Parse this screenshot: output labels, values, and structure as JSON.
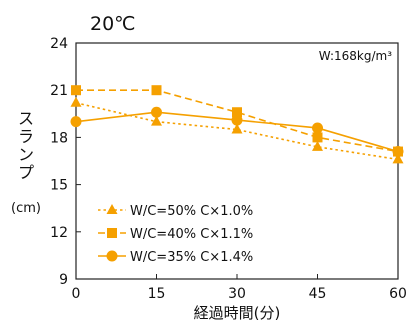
{
  "chart_data": {
    "type": "line",
    "title": "20℃",
    "annotation": "W:168kg/m³",
    "xlabel": "経過時間(分)",
    "ylabel": "スランプ",
    "ylabel_unit": "(cm)",
    "x": [
      0,
      15,
      30,
      45,
      60
    ],
    "x_ticks": [
      "0",
      "15",
      "30",
      "45",
      "60"
    ],
    "y_ticks": [
      "9",
      "12",
      "15",
      "18",
      "21",
      "24"
    ],
    "xlim": [
      0,
      60
    ],
    "ylim": [
      9,
      24
    ],
    "grid": false,
    "legend_position": "bottom-left",
    "color": "#f5a000",
    "series": [
      {
        "name": "W/C=50% C×1.0%",
        "values": [
          20.2,
          19.0,
          18.5,
          17.4,
          16.6
        ],
        "line": "dotted",
        "marker": "triangle"
      },
      {
        "name": "W/C=40% C×1.1%",
        "values": [
          21.0,
          21.0,
          19.6,
          18.0,
          17.1
        ],
        "line": "dashed",
        "marker": "square"
      },
      {
        "name": "W/C=35% C×1.4%",
        "values": [
          19.0,
          19.6,
          19.1,
          18.6,
          17.1
        ],
        "line": "solid",
        "marker": "circle"
      }
    ]
  }
}
